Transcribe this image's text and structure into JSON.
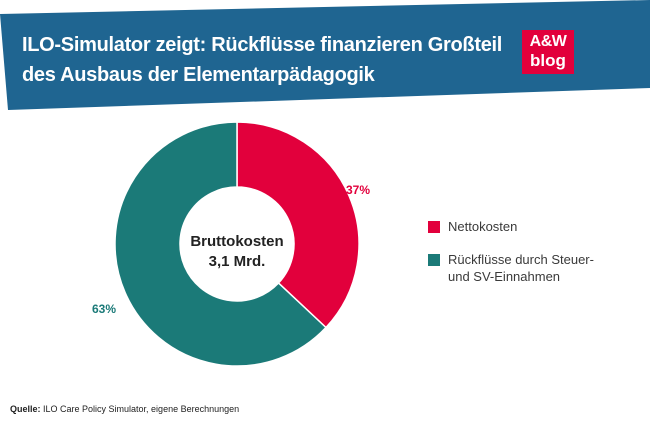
{
  "header": {
    "title_line1": "ILO-Simulator zeigt: Rückflüsse finanzieren Großteil",
    "title_line2": "des Ausbaus der Elementarpädagogik",
    "background_color": "#1f6591"
  },
  "logo": {
    "line1": "A&W",
    "line2": "blog",
    "color": "#e2003c"
  },
  "chart_data": {
    "type": "pie",
    "variant": "donut",
    "center_label_line1": "Bruttokosten",
    "center_label_line2": "3,1 Mrd.",
    "slices": [
      {
        "label": "Nettokosten",
        "value": 37,
        "display": "37%",
        "color": "#e2003c"
      },
      {
        "label": "Rückflüsse durch Steuer- und SV-Einnahmen",
        "value": 63,
        "display": "63%",
        "color": "#1b7a78"
      }
    ]
  },
  "legend": {
    "items": [
      {
        "line1": "Nettokosten",
        "line2": "",
        "color": "#e2003c"
      },
      {
        "line1": "Rückflüsse durch Steuer-",
        "line2": "und SV-Einnahmen",
        "color": "#1b7a78"
      }
    ]
  },
  "source": {
    "label": "Quelle:",
    "text": " ILO Care Policy Simulator, eigene Berechnungen"
  }
}
